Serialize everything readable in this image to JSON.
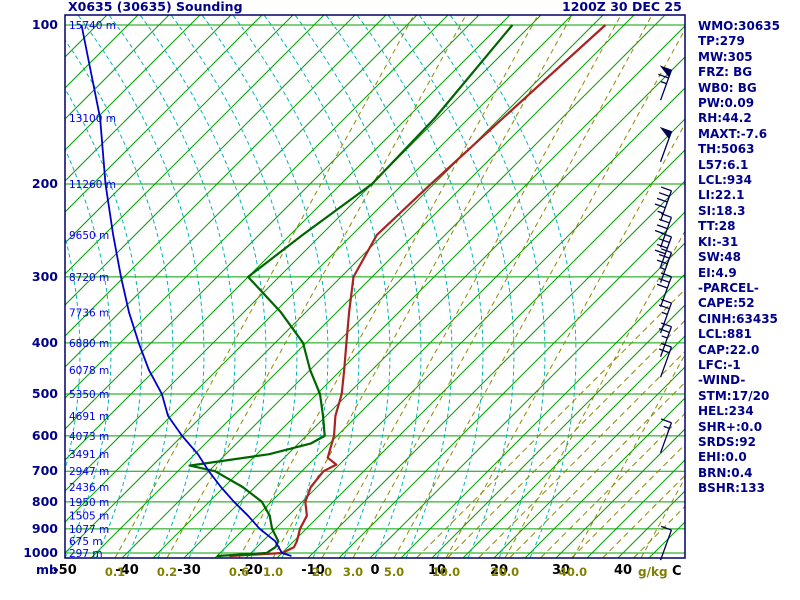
{
  "header": {
    "title": "X0635 (30635) Sounding",
    "datetime": "1200Z 30 DEC 25"
  },
  "axes": {
    "pressure_unit": "mb",
    "mixing_unit": "g/kg",
    "temp_unit": "C",
    "pressure_ticks": [
      100,
      200,
      300,
      400,
      500,
      600,
      700,
      800,
      900,
      1000
    ],
    "temp_ticks": [
      -50,
      -40,
      -30,
      -20,
      -10,
      0,
      10,
      20,
      30,
      40
    ],
    "mixing_ratio_ticks": [
      "0.1",
      "0.2",
      "0.6",
      "1.0",
      "2.0",
      "3.0",
      "5.0",
      "10.0",
      "20.0",
      "40.0"
    ],
    "heights": [
      {
        "p": 100,
        "label": "15740 m"
      },
      {
        "p": 150,
        "label": "13100 m"
      },
      {
        "p": 200,
        "label": "11260 m"
      },
      {
        "p": 250,
        "label": "9650 m"
      },
      {
        "p": 300,
        "label": "8720 m"
      },
      {
        "p": 350,
        "label": "7736 m"
      },
      {
        "p": 400,
        "label": "6880 m"
      },
      {
        "p": 450,
        "label": "6078 m"
      },
      {
        "p": 500,
        "label": "5350 m"
      },
      {
        "p": 550,
        "label": "4691 m"
      },
      {
        "p": 600,
        "label": "4073 m"
      },
      {
        "p": 650,
        "label": "3491 m"
      },
      {
        "p": 700,
        "label": "2947 m"
      },
      {
        "p": 750,
        "label": "2436 m"
      },
      {
        "p": 800,
        "label": "1950 m"
      },
      {
        "p": 850,
        "label": "1505 m"
      },
      {
        "p": 900,
        "label": "1077 m"
      },
      {
        "p": 950,
        "label": "675 m"
      },
      {
        "p": 1000,
        "label": "297 m"
      }
    ]
  },
  "chart_data": {
    "type": "line",
    "diagram": "skew-t-log-p sounding",
    "title": "X0635 (30635) Sounding",
    "xlabel": "Temperature (C)",
    "ylabel": "Pressure (mb)",
    "x_range": [
      -50,
      45
    ],
    "y_range": [
      1013,
      100
    ],
    "y_scale": "log",
    "grid": {
      "isotherm_step_c": 5,
      "isobar_step_mb": 100,
      "families": [
        "isotherms",
        "isobars",
        "saturation adiabats",
        "mixing ratio lines"
      ]
    },
    "series": [
      {
        "name": "temperature",
        "color": "#aa2222",
        "points": [
          [
            1013,
            -23
          ],
          [
            1000,
            -15
          ],
          [
            975,
            -14
          ],
          [
            950,
            -14.5
          ],
          [
            900,
            -16
          ],
          [
            850,
            -17
          ],
          [
            800,
            -19.5
          ],
          [
            750,
            -21
          ],
          [
            700,
            -21.5
          ],
          [
            680,
            -20.5
          ],
          [
            660,
            -23
          ],
          [
            600,
            -25.5
          ],
          [
            550,
            -28.5
          ],
          [
            500,
            -31
          ],
          [
            450,
            -34.5
          ],
          [
            400,
            -38.5
          ],
          [
            350,
            -43
          ],
          [
            300,
            -48
          ],
          [
            250,
            -51
          ],
          [
            200,
            -50.5
          ],
          [
            150,
            -49.5
          ],
          [
            100,
            -48
          ]
        ]
      },
      {
        "name": "dewpoint",
        "color": "#006400",
        "points": [
          [
            1013,
            -25
          ],
          [
            1000,
            -17.5
          ],
          [
            975,
            -17
          ],
          [
            950,
            -17.5
          ],
          [
            900,
            -20.5
          ],
          [
            850,
            -23
          ],
          [
            800,
            -26.5
          ],
          [
            750,
            -32
          ],
          [
            700,
            -39
          ],
          [
            683,
            -44
          ],
          [
            650,
            -33
          ],
          [
            620,
            -28
          ],
          [
            600,
            -27
          ],
          [
            550,
            -30.5
          ],
          [
            500,
            -34.5
          ],
          [
            450,
            -40
          ],
          [
            400,
            -45.5
          ],
          [
            350,
            -54
          ],
          [
            300,
            -65
          ],
          [
            250,
            -63
          ],
          [
            200,
            -60
          ],
          [
            150,
            -60.5
          ],
          [
            100,
            -63
          ]
        ]
      },
      {
        "name": "parcel",
        "color": "#0000cd",
        "note": "parcel / wet-bulb ascent trace as plotted",
        "points": [
          [
            1013,
            -13
          ],
          [
            1000,
            -15
          ],
          [
            950,
            -18
          ],
          [
            900,
            -22.5
          ],
          [
            850,
            -26.5
          ],
          [
            800,
            -31
          ],
          [
            750,
            -35.5
          ],
          [
            700,
            -40
          ],
          [
            650,
            -44.5
          ],
          [
            600,
            -50
          ],
          [
            550,
            -55.5
          ],
          [
            500,
            -60
          ],
          [
            450,
            -66
          ],
          [
            400,
            -72
          ],
          [
            350,
            -78.5
          ],
          [
            300,
            -85.5
          ],
          [
            250,
            -93.5
          ],
          [
            200,
            -103
          ],
          [
            150,
            -114.5
          ],
          [
            100,
            -132.5
          ]
        ]
      }
    ],
    "wind_barbs": [
      {
        "p": 130,
        "speed_kt": 65
      },
      {
        "p": 170,
        "speed_kt": 50
      },
      {
        "p": 220,
        "speed_kt": 45
      },
      {
        "p": 247,
        "speed_kt": 40
      },
      {
        "p": 269,
        "speed_kt": 40
      },
      {
        "p": 288,
        "speed_kt": 35
      },
      {
        "p": 320,
        "speed_kt": 30
      },
      {
        "p": 359,
        "speed_kt": 25
      },
      {
        "p": 398,
        "speed_kt": 25
      },
      {
        "p": 435,
        "speed_kt": 20
      },
      {
        "p": 605,
        "speed_kt": 15
      },
      {
        "p": 966,
        "speed_kt": 10
      }
    ]
  },
  "indices": {
    "lines": [
      "WMO:30635",
      "TP:279",
      "MW:305",
      "FRZ: BG",
      "WB0: BG",
      "PW:0.09",
      "RH:44.2",
      "MAXT:-7.6",
      "TH:5063",
      "L57:6.1",
      "LCL:934",
      "LI:22.1",
      "SI:18.3",
      "TT:28",
      "KI:-31",
      "SW:48",
      "EI:4.9",
      "-PARCEL-",
      "CAPE:52",
      "CINH:63435",
      "LCL:881",
      "CAP:22.0",
      "LFC:-1",
      "-WIND-",
      "STM:17/20",
      "HEL:234",
      "SHR+:0.0",
      "SRDS:92",
      "EHI:0.0",
      "BRN:0.4",
      "BSHR:133"
    ]
  },
  "colors": {
    "grid_green": "#00a000",
    "moist_adiabat_cyan": "#00b4b4",
    "mixing_ratio_olive": "#8a8a00",
    "temperature_red": "#aa2222",
    "dewpoint_green": "#006400",
    "parcel_blue": "#0000cd",
    "text_navy": "#00008b",
    "height_blue": "#0000ee",
    "barb_navy": "#000050"
  }
}
